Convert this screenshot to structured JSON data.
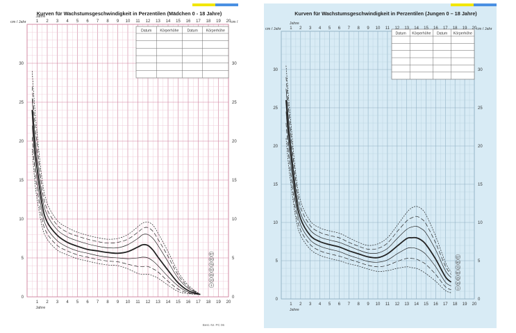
{
  "sheets": [
    {
      "id": "girls",
      "title": "Kurven für Wachstumsgeschwindigkeit in Perzentilen (Mädchen 0 - 18 Jahre)",
      "paper_color": "#ffffff",
      "minor_grid_color": "#ecc4d2",
      "major_grid_color": "#cf7f9b",
      "ylabel_left": "cm / Jahr",
      "ylabel_right": "cm / Jahr",
      "xlabel_top": "Jahre",
      "xlabel_bottom": "Jahre",
      "footer": "Best.-Nr. PC 06",
      "table_headers": [
        "Datum",
        "Körperhöhe",
        "Datum",
        "Körperhöhe"
      ],
      "percentile_labels": [
        "97",
        "90",
        "75",
        "50",
        "25",
        "10",
        "3"
      ],
      "stripe_colors": [
        "#f2e600",
        "#4a90e2"
      ]
    },
    {
      "id": "boys",
      "title": "Kurven für Wachstumsgeschwindigkeit in Perzentilen (Jungen 0 – 18 Jahre)",
      "paper_color": "#d8ebf5",
      "minor_grid_color": "#b6cfdd",
      "major_grid_color": "#8fb0c4",
      "ylabel_left": "cm / Jahr",
      "ylabel_right": "cm / Jahr",
      "xlabel_top": "Jahre",
      "xlabel_bottom": "Jahre",
      "footer": "",
      "table_headers": [
        "Datum",
        "Körperhöhe",
        "Datum",
        "Körperhöhe"
      ],
      "percentile_labels": [
        "97",
        "90",
        "75",
        "50",
        "25",
        "10",
        "3"
      ],
      "stripe_colors": [
        "#f2e600",
        "#4a90e2"
      ]
    }
  ],
  "chart_data": [
    {
      "type": "line",
      "title": "Kurven für Wachstumsgeschwindigkeit in Perzentilen (Mädchen 0 - 18 Jahre)",
      "xlabel": "Jahre",
      "ylabel": "cm / Jahr",
      "xlim": [
        0,
        20
      ],
      "ylim": [
        0,
        35
      ],
      "x_ticks": [
        1,
        2,
        3,
        4,
        5,
        6,
        7,
        8,
        9,
        10,
        11,
        12,
        13,
        14,
        15,
        16,
        17,
        18,
        19,
        20
      ],
      "y_ticks": [
        0,
        5,
        10,
        15,
        20,
        25,
        30
      ],
      "grid": true,
      "series": [
        {
          "name": "97",
          "x": [
            0.5,
            0.75,
            1,
            1.5,
            2,
            3,
            4,
            5,
            6,
            7,
            8,
            9,
            10,
            11,
            11.5,
            12,
            12.5,
            13,
            14,
            15,
            16,
            17.2
          ],
          "y": [
            29.0,
            24.5,
            21.0,
            15.0,
            12.0,
            9.8,
            8.9,
            8.3,
            7.9,
            7.6,
            7.4,
            7.5,
            8.0,
            9.0,
            9.5,
            9.6,
            9.2,
            8.2,
            5.8,
            3.2,
            1.5,
            0.3
          ]
        },
        {
          "name": "90",
          "x": [
            0.5,
            0.75,
            1,
            1.5,
            2,
            3,
            4,
            5,
            6,
            7,
            8,
            9,
            10,
            11,
            11.5,
            12,
            12.5,
            13,
            14,
            15,
            16,
            17.2
          ],
          "y": [
            27.0,
            22.5,
            19.5,
            13.8,
            11.2,
            9.2,
            8.3,
            7.8,
            7.4,
            7.1,
            6.9,
            7.0,
            7.4,
            8.3,
            8.8,
            8.9,
            8.4,
            7.4,
            5.2,
            2.8,
            1.3,
            0.3
          ]
        },
        {
          "name": "75",
          "x": [
            0.5,
            0.75,
            1,
            1.5,
            2,
            3,
            4,
            5,
            6,
            7,
            8,
            9,
            10,
            11,
            11.5,
            12,
            12.5,
            13,
            14,
            15,
            16,
            17.2
          ],
          "y": [
            25.5,
            21.0,
            18.0,
            12.8,
            10.5,
            8.6,
            7.7,
            7.2,
            6.8,
            6.5,
            6.3,
            6.3,
            6.7,
            7.5,
            8.0,
            8.0,
            7.5,
            6.6,
            4.5,
            2.4,
            1.1,
            0.3
          ]
        },
        {
          "name": "50",
          "x": [
            0.5,
            0.75,
            1,
            1.5,
            2,
            3,
            4,
            5,
            6,
            7,
            8,
            9,
            10,
            11,
            11.5,
            12,
            12.5,
            13,
            14,
            15,
            16,
            17.2
          ],
          "y": [
            24.0,
            19.5,
            16.5,
            11.8,
            9.6,
            7.9,
            7.0,
            6.5,
            6.1,
            5.9,
            5.7,
            5.6,
            5.8,
            6.4,
            6.7,
            6.6,
            6.0,
            5.1,
            3.4,
            1.8,
            0.8,
            0.3
          ]
        },
        {
          "name": "25",
          "x": [
            0.5,
            0.75,
            1,
            1.5,
            2,
            3,
            4,
            5,
            6,
            7,
            8,
            9,
            10,
            11,
            11.5,
            12,
            12.5,
            13,
            14,
            15,
            16,
            17.2
          ],
          "y": [
            22.0,
            18.0,
            15.0,
            10.8,
            8.8,
            7.2,
            6.4,
            5.9,
            5.6,
            5.3,
            5.1,
            5.0,
            4.9,
            5.0,
            5.1,
            5.0,
            4.6,
            4.0,
            2.6,
            1.4,
            0.6,
            0.3
          ]
        },
        {
          "name": "10",
          "x": [
            0.5,
            0.75,
            1,
            1.5,
            2,
            3,
            4,
            5,
            6,
            7,
            8,
            9,
            10,
            11,
            11.5,
            12,
            12.5,
            13,
            14,
            15,
            16,
            17.2
          ],
          "y": [
            20.5,
            16.5,
            13.8,
            9.9,
            8.1,
            6.6,
            5.9,
            5.4,
            5.1,
            4.8,
            4.6,
            4.5,
            4.2,
            3.9,
            3.9,
            3.9,
            3.6,
            3.2,
            2.0,
            1.0,
            0.5,
            0.3
          ]
        },
        {
          "name": "3",
          "x": [
            0.5,
            0.75,
            1,
            1.5,
            2,
            3,
            4,
            5,
            6,
            7,
            8,
            9,
            10,
            11,
            11.5,
            12,
            12.5,
            13,
            14,
            15,
            16,
            17.2
          ],
          "y": [
            19.0,
            15.0,
            12.5,
            9.0,
            7.4,
            6.0,
            5.4,
            4.9,
            4.6,
            4.3,
            4.1,
            4.0,
            3.6,
            3.0,
            2.9,
            2.9,
            2.7,
            2.4,
            1.5,
            0.7,
            0.4,
            0.3
          ]
        }
      ]
    },
    {
      "type": "line",
      "title": "Kurven für Wachstumsgeschwindigkeit in Perzentilen (Jungen 0 – 18 Jahre)",
      "xlabel": "Jahre",
      "ylabel": "cm / Jahr",
      "xlim": [
        0,
        20
      ],
      "ylim": [
        0,
        35
      ],
      "x_ticks": [
        1,
        2,
        3,
        4,
        5,
        6,
        7,
        8,
        9,
        10,
        11,
        12,
        13,
        14,
        15,
        16,
        17,
        18,
        19,
        20
      ],
      "y_ticks": [
        0,
        5,
        10,
        15,
        20,
        25,
        30
      ],
      "grid": true,
      "series": [
        {
          "name": "97",
          "x": [
            0.5,
            0.75,
            1,
            1.5,
            2,
            3,
            4,
            5,
            6,
            7,
            8,
            9,
            10,
            11,
            12,
            13,
            13.5,
            14,
            14.5,
            15,
            16,
            17,
            17.6
          ],
          "y": [
            30.5,
            26.5,
            23.0,
            16.5,
            12.8,
            10.2,
            9.3,
            8.9,
            8.6,
            8.0,
            7.4,
            7.0,
            7.2,
            8.0,
            9.6,
            11.3,
            11.9,
            12.1,
            11.8,
            11.0,
            8.2,
            4.8,
            3.5
          ]
        },
        {
          "name": "90",
          "x": [
            0.5,
            0.75,
            1,
            1.5,
            2,
            3,
            4,
            5,
            6,
            7,
            8,
            9,
            10,
            11,
            12,
            13,
            13.5,
            14,
            14.5,
            15,
            16,
            17,
            17.6
          ],
          "y": [
            29.0,
            25.0,
            21.5,
            15.5,
            12.0,
            9.6,
            8.7,
            8.3,
            8.0,
            7.4,
            6.9,
            6.5,
            6.6,
            7.3,
            8.8,
            10.2,
            10.6,
            10.8,
            10.5,
            9.8,
            7.3,
            4.3,
            3.2
          ]
        },
        {
          "name": "75",
          "x": [
            0.5,
            0.75,
            1,
            1.5,
            2,
            3,
            4,
            5,
            6,
            7,
            8,
            9,
            10,
            11,
            12,
            13,
            13.5,
            14,
            14.5,
            15,
            16,
            17,
            17.6
          ],
          "y": [
            27.5,
            23.5,
            20.2,
            14.5,
            11.2,
            9.0,
            8.1,
            7.7,
            7.4,
            6.9,
            6.4,
            6.0,
            6.0,
            6.6,
            7.9,
            9.1,
            9.4,
            9.5,
            9.2,
            8.6,
            6.4,
            3.7,
            2.8
          ]
        },
        {
          "name": "50",
          "x": [
            0.5,
            0.75,
            1,
            1.5,
            2,
            3,
            4,
            5,
            6,
            7,
            8,
            9,
            10,
            11,
            12,
            13,
            13.5,
            14,
            14.5,
            15,
            16,
            17,
            17.6
          ],
          "y": [
            26.0,
            22.0,
            19.0,
            13.5,
            10.5,
            8.3,
            7.5,
            7.1,
            6.8,
            6.3,
            5.9,
            5.5,
            5.4,
            5.9,
            6.9,
            7.9,
            8.0,
            8.0,
            7.7,
            7.1,
            5.2,
            2.9,
            2.2
          ]
        },
        {
          "name": "25",
          "x": [
            0.5,
            0.75,
            1,
            1.5,
            2,
            3,
            4,
            5,
            6,
            7,
            8,
            9,
            10,
            11,
            12,
            13,
            13.5,
            14,
            14.5,
            15,
            16,
            17,
            17.6
          ],
          "y": [
            24.5,
            20.5,
            17.5,
            12.5,
            9.7,
            7.7,
            6.9,
            6.5,
            6.2,
            5.7,
            5.3,
            4.9,
            4.8,
            5.1,
            5.9,
            6.6,
            6.7,
            6.6,
            6.3,
            5.8,
            4.2,
            2.2,
            1.7
          ]
        },
        {
          "name": "10",
          "x": [
            0.5,
            0.75,
            1,
            1.5,
            2,
            3,
            4,
            5,
            6,
            7,
            8,
            9,
            10,
            11,
            12,
            13,
            13.5,
            14,
            14.5,
            15,
            16,
            17,
            17.6
          ],
          "y": [
            23.0,
            19.0,
            16.2,
            11.5,
            9.0,
            7.1,
            6.3,
            5.9,
            5.6,
            5.2,
            4.8,
            4.4,
            4.2,
            4.4,
            4.9,
            5.3,
            5.3,
            5.2,
            4.9,
            4.5,
            3.2,
            1.6,
            1.2
          ]
        },
        {
          "name": "3",
          "x": [
            0.5,
            0.75,
            1,
            1.5,
            2,
            3,
            4,
            5,
            6,
            7,
            8,
            9,
            10,
            11,
            12,
            13,
            13.5,
            14,
            14.5,
            15,
            16,
            17,
            17.6
          ],
          "y": [
            21.0,
            17.5,
            15.0,
            10.6,
            8.3,
            6.5,
            5.7,
            5.3,
            5.0,
            4.6,
            4.3,
            3.9,
            3.6,
            3.7,
            4.0,
            4.2,
            4.1,
            4.0,
            3.7,
            3.3,
            2.3,
            1.1,
            0.8
          ]
        }
      ]
    }
  ]
}
